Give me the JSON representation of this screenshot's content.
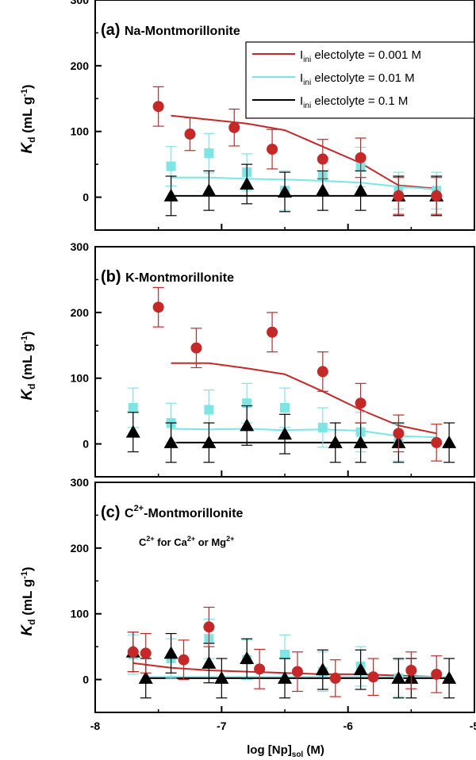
{
  "chart_data": {
    "type": "scatter",
    "xlabel": "log [Np]",
    "xlabel_sub": "sol",
    "xlabel_unit": " (M)",
    "ylabel_main": "K",
    "ylabel_sub": "d",
    "ylabel_unit": " (mL g",
    "ylabel_sup": "-1",
    "ylabel_close": ")",
    "xlim": [
      -8,
      -5
    ],
    "x_ticks": [
      -8,
      -7,
      -6,
      -5
    ],
    "x_tick_labels": [
      "-8",
      "-7",
      "-6",
      "-5"
    ],
    "ylim": [
      -50,
      300
    ],
    "y_ticks": [
      0,
      100,
      200,
      300
    ],
    "y_tick_labels": [
      "0",
      "100",
      "200",
      "300"
    ],
    "colors": {
      "series_0.001": "#c62828",
      "series_0.01": "#7ae6e6",
      "series_0.1": "#000000"
    },
    "legend": {
      "placement": "top-right",
      "entries": [
        {
          "series": "0.001",
          "prefix": "I",
          "sub": "ini",
          "suffix": " electolyte = 0.001 M"
        },
        {
          "series": "0.01",
          "prefix": "I",
          "sub": "ini",
          "suffix": " electolyte = 0.01 M"
        },
        {
          "series": "0.1",
          "prefix": "I",
          "sub": "ini",
          "suffix": " electolyte = 0.1 M"
        }
      ]
    },
    "panels": [
      {
        "id": "a",
        "label": "(a)",
        "title": "Na-Montmorillonite",
        "series": [
          {
            "key": "0.001",
            "marker": "circle",
            "points": [
              [
                -7.5,
                138,
                30
              ],
              [
                -7.25,
                96,
                25
              ],
              [
                -6.9,
                106,
                28
              ],
              [
                -6.6,
                73,
                30
              ],
              [
                -6.2,
                58,
                30
              ],
              [
                -5.9,
                60,
                30
              ],
              [
                -5.6,
                2,
                28
              ],
              [
                -5.3,
                2,
                28
              ]
            ],
            "line": [
              [
                -7.4,
                124
              ],
              [
                -7.1,
                118
              ],
              [
                -6.8,
                112
              ],
              [
                -6.5,
                102
              ],
              [
                -6.2,
                77
              ],
              [
                -5.9,
                52
              ],
              [
                -5.6,
                18
              ],
              [
                -5.3,
                13
              ]
            ]
          },
          {
            "key": "0.01",
            "marker": "square",
            "points": [
              [
                -7.4,
                47,
                30
              ],
              [
                -7.1,
                67,
                30
              ],
              [
                -6.8,
                38,
                28
              ],
              [
                -6.5,
                10,
                30
              ],
              [
                -6.2,
                33,
                28
              ],
              [
                -5.9,
                46,
                30
              ],
              [
                -5.6,
                10,
                28
              ],
              [
                -5.3,
                10,
                28
              ]
            ],
            "line": [
              [
                -7.4,
                30
              ],
              [
                -7.1,
                30
              ],
              [
                -6.8,
                28
              ],
              [
                -6.5,
                27
              ],
              [
                -6.2,
                25
              ],
              [
                -5.9,
                22
              ],
              [
                -5.6,
                16
              ],
              [
                -5.3,
                12
              ]
            ]
          },
          {
            "key": "0.1",
            "marker": "triangle",
            "points": [
              [
                -7.4,
                2,
                30
              ],
              [
                -7.1,
                10,
                30
              ],
              [
                -6.8,
                20,
                30
              ],
              [
                -6.5,
                8,
                30
              ],
              [
                -6.2,
                10,
                30
              ],
              [
                -5.9,
                10,
                30
              ],
              [
                -5.6,
                2,
                30
              ],
              [
                -5.3,
                2,
                30
              ]
            ],
            "line": [
              [
                -7.4,
                2
              ],
              [
                -7.1,
                2
              ],
              [
                -6.8,
                2
              ],
              [
                -6.5,
                2
              ],
              [
                -6.2,
                2
              ],
              [
                -5.9,
                2
              ],
              [
                -5.6,
                2
              ],
              [
                -5.3,
                2
              ]
            ]
          }
        ]
      },
      {
        "id": "b",
        "label": "(b)",
        "title": "K-Montmorillonite",
        "series": [
          {
            "key": "0.001",
            "marker": "circle",
            "points": [
              [
                -7.5,
                208,
                30
              ],
              [
                -7.2,
                146,
                30
              ],
              [
                -6.6,
                170,
                30
              ],
              [
                -6.2,
                110,
                30
              ],
              [
                -5.9,
                62,
                30
              ],
              [
                -5.6,
                16,
                28
              ],
              [
                -5.3,
                2,
                28
              ]
            ],
            "line": [
              [
                -7.4,
                123
              ],
              [
                -7.1,
                123
              ],
              [
                -6.8,
                115
              ],
              [
                -6.5,
                106
              ],
              [
                -6.2,
                80
              ],
              [
                -5.9,
                52
              ],
              [
                -5.6,
                28
              ],
              [
                -5.3,
                16
              ]
            ]
          },
          {
            "key": "0.01",
            "marker": "square",
            "points": [
              [
                -7.7,
                55,
                30
              ],
              [
                -7.4,
                32,
                30
              ],
              [
                -7.1,
                52,
                30
              ],
              [
                -6.8,
                62,
                30
              ],
              [
                -6.5,
                55,
                30
              ],
              [
                -6.2,
                25,
                30
              ],
              [
                -5.9,
                18,
                30
              ],
              [
                -5.6,
                2,
                28
              ]
            ],
            "line": [
              [
                -7.4,
                23
              ],
              [
                -7.1,
                22
              ],
              [
                -6.8,
                23
              ],
              [
                -6.5,
                21
              ],
              [
                -6.2,
                22
              ],
              [
                -5.9,
                20
              ],
              [
                -5.6,
                12
              ],
              [
                -5.3,
                10
              ]
            ]
          },
          {
            "key": "0.1",
            "marker": "triangle",
            "points": [
              [
                -7.7,
                18,
                30
              ],
              [
                -7.4,
                2,
                30
              ],
              [
                -7.1,
                2,
                30
              ],
              [
                -6.8,
                28,
                30
              ],
              [
                -6.5,
                15,
                30
              ],
              [
                -6.1,
                2,
                30
              ],
              [
                -5.9,
                2,
                30
              ],
              [
                -5.6,
                2,
                30
              ],
              [
                -5.2,
                2,
                30
              ]
            ],
            "line": [
              [
                -7.4,
                2
              ],
              [
                -7.1,
                2
              ],
              [
                -6.8,
                2
              ],
              [
                -6.5,
                2
              ],
              [
                -6.2,
                2
              ],
              [
                -5.9,
                2
              ],
              [
                -5.6,
                2
              ],
              [
                -5.3,
                2
              ]
            ]
          }
        ]
      },
      {
        "id": "c",
        "label": "(c)",
        "title_prefix": "C",
        "title_sup": "2+",
        "title_suffix": "-Montmorillonite",
        "note": [
          {
            "t": "C"
          },
          {
            "t": "2+",
            "sup": true
          },
          {
            "t": " for Ca"
          },
          {
            "t": "2+",
            "sup": true
          },
          {
            "t": " or Mg"
          },
          {
            "t": "2+",
            "sup": true
          }
        ],
        "series": [
          {
            "key": "0.001",
            "marker": "circle",
            "points": [
              [
                -7.7,
                42,
                30
              ],
              [
                -7.6,
                40,
                30
              ],
              [
                -7.3,
                30,
                30
              ],
              [
                -7.1,
                80,
                30
              ],
              [
                -6.7,
                16,
                30
              ],
              [
                -6.4,
                12,
                30
              ],
              [
                -6.1,
                2,
                28
              ],
              [
                -5.8,
                4,
                28
              ],
              [
                -5.5,
                14,
                28
              ],
              [
                -5.3,
                8,
                28
              ]
            ],
            "line": [
              [
                -7.7,
                25
              ],
              [
                -7.4,
                18
              ],
              [
                -7.1,
                14
              ],
              [
                -6.8,
                12
              ],
              [
                -6.5,
                10
              ],
              [
                -6.2,
                8
              ],
              [
                -5.9,
                8
              ],
              [
                -5.6,
                6
              ],
              [
                -5.3,
                4
              ]
            ]
          },
          {
            "key": "0.01",
            "marker": "square",
            "points": [
              [
                -7.7,
                38,
                30
              ],
              [
                -7.4,
                32,
                30
              ],
              [
                -7.1,
                62,
                30
              ],
              [
                -6.8,
                30,
                30
              ],
              [
                -6.5,
                38,
                30
              ],
              [
                -6.2,
                12,
                30
              ],
              [
                -5.9,
                20,
                30
              ],
              [
                -5.6,
                2,
                28
              ]
            ],
            "line": [
              [
                -7.6,
                4
              ],
              [
                -7.3,
                4
              ],
              [
                -7.0,
                4
              ],
              [
                -6.7,
                4
              ],
              [
                -6.4,
                4
              ],
              [
                -6.1,
                4
              ],
              [
                -5.8,
                4
              ],
              [
                -5.5,
                4
              ],
              [
                -5.2,
                4
              ]
            ]
          },
          {
            "key": "0.1",
            "marker": "triangle",
            "points": [
              [
                -7.7,
                42,
                30
              ],
              [
                -7.6,
                2,
                30
              ],
              [
                -7.4,
                40,
                30
              ],
              [
                -7.1,
                25,
                30
              ],
              [
                -7.0,
                2,
                30
              ],
              [
                -6.8,
                32,
                30
              ],
              [
                -6.5,
                2,
                30
              ],
              [
                -6.2,
                15,
                30
              ],
              [
                -5.9,
                15,
                30
              ],
              [
                -5.6,
                2,
                30
              ],
              [
                -5.5,
                2,
                30
              ],
              [
                -5.2,
                2,
                30
              ]
            ],
            "line": [
              [
                -7.6,
                2
              ],
              [
                -7.3,
                2
              ],
              [
                -7.0,
                2
              ],
              [
                -6.7,
                2
              ],
              [
                -6.4,
                2
              ],
              [
                -6.1,
                2
              ],
              [
                -5.8,
                2
              ],
              [
                -5.5,
                2
              ],
              [
                -5.2,
                2
              ]
            ]
          }
        ]
      }
    ]
  }
}
